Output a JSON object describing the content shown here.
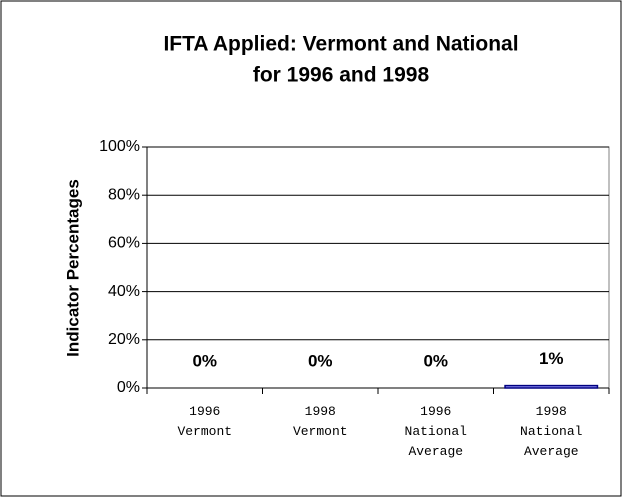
{
  "chart_data": {
    "type": "bar",
    "title": [
      "IFTA Applied: Vermont and National",
      "for 1996 and 1998"
    ],
    "y_label": "Indicator Percentages",
    "categories": [
      "1996 Vermont",
      "1998 Vermont",
      "1996 National Average",
      "1998 National Average"
    ],
    "values": [
      0,
      0,
      0,
      1
    ],
    "value_labels": [
      "0%",
      "0%",
      "0%",
      "1%"
    ],
    "color": "#9999ff",
    "ylim": [
      0,
      100
    ],
    "yticks": [
      {
        "value": 0,
        "label": "0%"
      },
      {
        "value": 20,
        "label": "20%"
      },
      {
        "value": 40,
        "label": "40%"
      },
      {
        "value": 60,
        "label": "60%"
      },
      {
        "value": 80,
        "label": "80%"
      },
      {
        "value": 100,
        "label": "100%"
      }
    ],
    "grid": true
  }
}
